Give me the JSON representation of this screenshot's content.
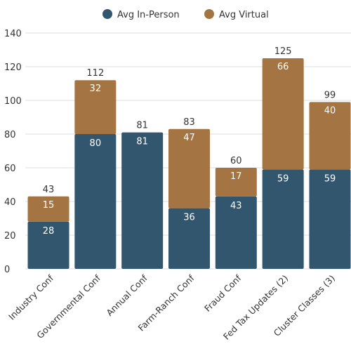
{
  "chart_data": {
    "type": "bar",
    "stacked": true,
    "categories": [
      "Industry Conf",
      "Governmental Conf",
      "Annual Conf",
      "Farm-Ranch Conf",
      "Fraud Conf",
      "Fed Tax Updates (2)",
      "Cluster Classes (3)"
    ],
    "series": [
      {
        "name": "Avg In-Person",
        "values": [
          28,
          80,
          81,
          36,
          43,
          59,
          59
        ],
        "color": "#33566f"
      },
      {
        "name": "Avg Virtual",
        "values": [
          15,
          32,
          0,
          47,
          17,
          66,
          40
        ],
        "color": "#a47542"
      }
    ],
    "totals": [
      43,
      112,
      81,
      83,
      60,
      125,
      99
    ],
    "ylim": [
      0,
      140
    ],
    "yticks": [
      "0",
      "20",
      "40",
      "60",
      "80",
      "100",
      "120",
      "140"
    ],
    "grid": true,
    "legend_position": "top-center",
    "title": "",
    "xlabel": "",
    "ylabel": ""
  }
}
